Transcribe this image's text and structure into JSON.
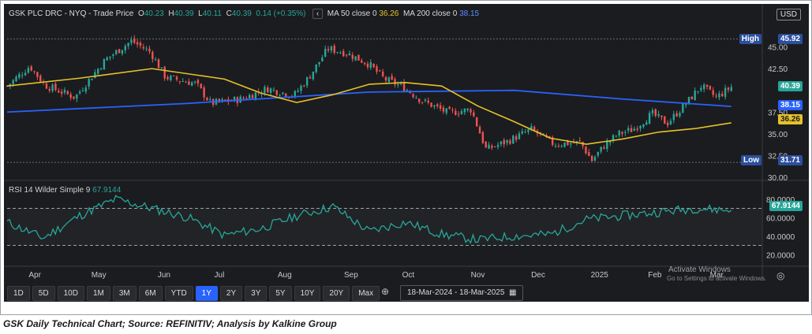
{
  "header": {
    "symbol": "GSK PLC DRC - NYQ - Trade Price",
    "open_label": "O",
    "open": "40.23",
    "high_label": "H",
    "high": "40.39",
    "low_label": "L",
    "low": "40.11",
    "close_label": "C",
    "close": "40.39",
    "change": "0.14 (+0.35%)",
    "ma50_label": "MA 50 close 0",
    "ma50_value": "36.26",
    "ma200_label": "MA 200 close 0",
    "ma200_value": "38.15",
    "currency": "USD"
  },
  "colors": {
    "bg": "#1b1c1f",
    "up": "#26a69a",
    "down": "#ef5350",
    "ma50": "#e6c229",
    "ma200": "#2962ff",
    "rsi": "#26a69a"
  },
  "rsi_panel": {
    "label": "RSI 14 Wilder Simple 9",
    "value": "67.9144"
  },
  "badges": {
    "high_label": "High",
    "high_value": "45.92",
    "low_label": "Low",
    "low_value": "31.71",
    "last": "40.39",
    "ma200": "38.15",
    "ma50": "36.26",
    "rsi": "67.9144"
  },
  "price_axis": [
    "45.00",
    "42.50",
    "37.50",
    "35.00",
    "32.50",
    "30.00"
  ],
  "rsi_axis": [
    "80.0000",
    "60.0000",
    "40.0000",
    "20.0000"
  ],
  "months": [
    "Apr",
    "May",
    "Jun",
    "Jul",
    "Aug",
    "Sep",
    "Oct",
    "Nov",
    "Dec",
    "2025",
    "Feb",
    "Mar"
  ],
  "toolbar": {
    "periods": [
      "1D",
      "5D",
      "10D",
      "1M",
      "3M",
      "6M",
      "YTD",
      "1Y",
      "2Y",
      "3Y",
      "5Y",
      "10Y",
      "20Y",
      "Max"
    ],
    "active": "1Y",
    "date_range": "18-Mar-2024 - 18-Mar-2025"
  },
  "watermark": {
    "line1": "Activate Windows",
    "line2": "Go to Settings to activate Windows."
  },
  "caption": "GSK Daily Technical Chart; Source: REFINITIV; Analysis by Kalkine Group",
  "chart_data": {
    "type": "line",
    "title": "GSK PLC DRC - NYQ - Trade Price",
    "x_range": [
      "18-Mar-2024",
      "18-Mar-2025"
    ],
    "price_ylim": [
      30,
      46.5
    ],
    "rsi_ylim": [
      10,
      90
    ],
    "series": [
      {
        "name": "MA 50 close 0",
        "x": [
          0,
          0.1,
          0.2,
          0.3,
          0.35,
          0.4,
          0.45,
          0.5,
          0.55,
          0.6,
          0.65,
          0.7,
          0.75,
          0.8,
          0.85,
          0.9,
          0.95,
          1.0
        ],
        "values": [
          40.5,
          41.4,
          42.5,
          41.3,
          39.7,
          38.6,
          39.5,
          40.7,
          40.9,
          40.5,
          38.2,
          36.4,
          34.5,
          33.8,
          34.4,
          35.2,
          35.6,
          36.26
        ]
      },
      {
        "name": "MA 200 close 0",
        "x": [
          0,
          0.25,
          0.5,
          0.7,
          0.85,
          1.0
        ],
        "values": [
          37.5,
          38.5,
          39.8,
          40.0,
          39.0,
          38.15
        ]
      },
      {
        "name": "RSI 14 Wilder Simple 9",
        "x": [
          0,
          0.05,
          0.1,
          0.15,
          0.2,
          0.25,
          0.3,
          0.35,
          0.4,
          0.45,
          0.5,
          0.55,
          0.6,
          0.65,
          0.7,
          0.75,
          0.8,
          0.85,
          0.9,
          0.95,
          1.0
        ],
        "values": [
          55,
          38,
          62,
          80,
          70,
          60,
          41,
          48,
          62,
          72,
          45,
          55,
          42,
          36,
          40,
          42,
          58,
          62,
          66,
          70,
          67.9
        ]
      }
    ]
  }
}
